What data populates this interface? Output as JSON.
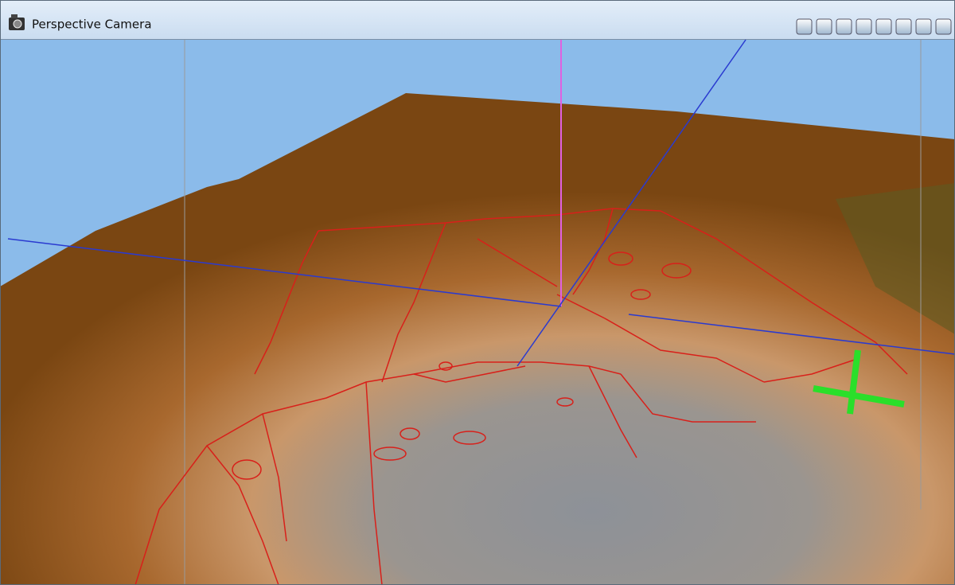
{
  "window": {
    "title": "Perspective Camera"
  }
}
